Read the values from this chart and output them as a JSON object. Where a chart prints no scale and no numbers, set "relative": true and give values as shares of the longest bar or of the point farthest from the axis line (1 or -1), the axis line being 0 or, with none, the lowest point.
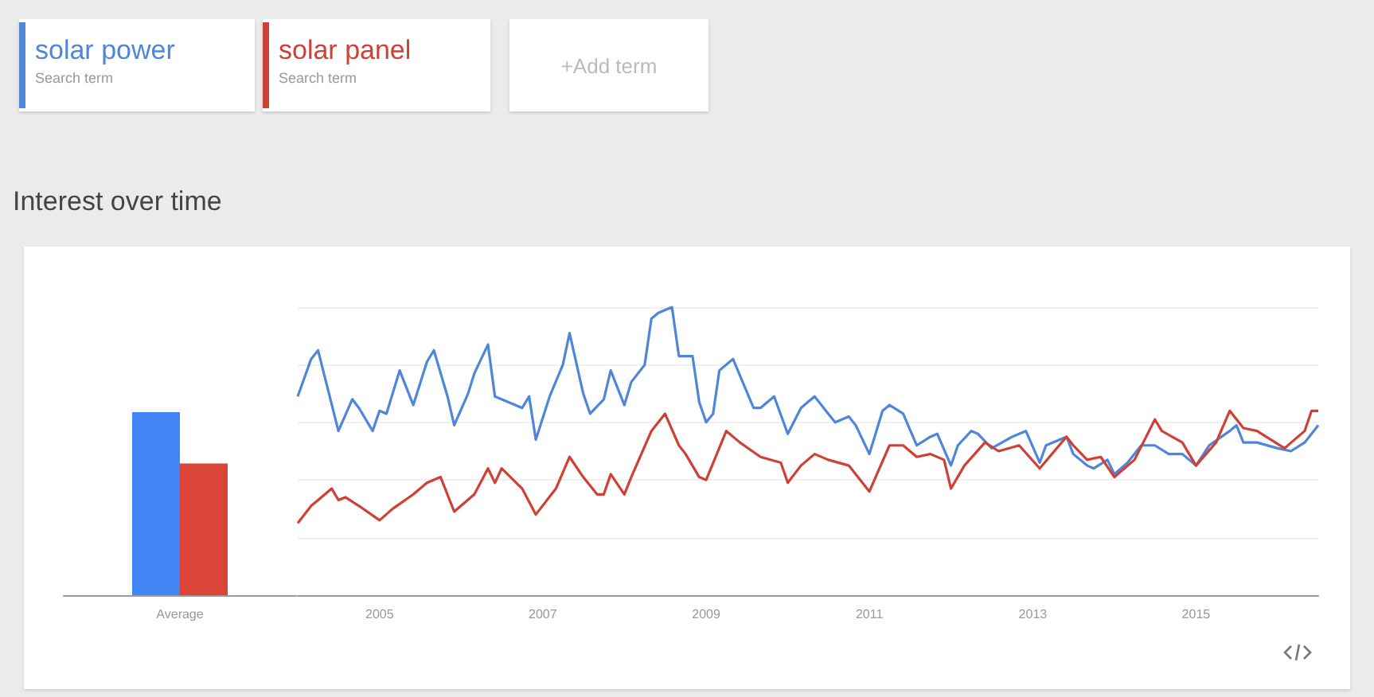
{
  "chart_data": [
    {
      "type": "bar",
      "categories": [
        "Average"
      ],
      "relative": true,
      "series": [
        {
          "color": "#4285f4",
          "values": [
            1
          ]
        },
        {
          "color": "#db4437",
          "values": [
            0.72
          ]
        }
      ]
    },
    {
      "type": "line",
      "title": "Interest over time",
      "relative": true,
      "grid": "y",
      "legend": "top left",
      "marker": "none",
      "line_style": "solid",
      "annotations": [
        "Search term",
        "Search term",
        "+Add term"
      ],
      "xlim": [
        "2004-01",
        "2016-07"
      ],
      "xticks": [
        "2005",
        "2007",
        "2009",
        "2011",
        "2013",
        "2015"
      ],
      "series": [
        {
          "name": "solar power",
          "color": "#4f86d9",
          "x": [
            "2004-01",
            "2004-03",
            "2004-04",
            "2004-07",
            "2004-09",
            "2004-10",
            "2004-12",
            "2005-01",
            "2005-02",
            "2005-04",
            "2005-06",
            "2005-08",
            "2005-09",
            "2005-11",
            "2005-12",
            "2006-02",
            "2006-03",
            "2006-05",
            "2006-06",
            "2006-08",
            "2006-10",
            "2006-11",
            "2006-12",
            "2007-02",
            "2007-04",
            "2007-05",
            "2007-07",
            "2007-08",
            "2007-10",
            "2007-11",
            "2008-01",
            "2008-02",
            "2008-04",
            "2008-05",
            "2008-06",
            "2008-08",
            "2008-09",
            "2008-11",
            "2008-12",
            "2009-01",
            "2009-02",
            "2009-03",
            "2009-05",
            "2009-08",
            "2009-09",
            "2009-11",
            "2010-01",
            "2010-03",
            "2010-05",
            "2010-07",
            "2010-08",
            "2010-10",
            "2010-11",
            "2011-01",
            "2011-03",
            "2011-04",
            "2011-06",
            "2011-08",
            "2011-10",
            "2011-11",
            "2012-01",
            "2012-02",
            "2012-04",
            "2012-05",
            "2012-07",
            "2012-10",
            "2012-11",
            "2012-12",
            "2013-02",
            "2013-03",
            "2013-06",
            "2013-07",
            "2013-09",
            "2013-10",
            "2013-12",
            "2014-01",
            "2014-03",
            "2014-05",
            "2014-07",
            "2014-09",
            "2014-11",
            "2015-01",
            "2015-03",
            "2015-06",
            "2015-07",
            "2015-08",
            "2015-10",
            "2016-01",
            "2016-03",
            "2016-05",
            "2016-07"
          ],
          "values": [
            0.69,
            0.82,
            0.85,
            0.57,
            0.68,
            0.65,
            0.57,
            0.64,
            0.63,
            0.78,
            0.66,
            0.81,
            0.85,
            0.69,
            0.59,
            0.7,
            0.77,
            0.87,
            0.69,
            0.67,
            0.65,
            0.69,
            0.54,
            0.69,
            0.8,
            0.91,
            0.7,
            0.63,
            0.68,
            0.78,
            0.66,
            0.74,
            0.8,
            0.96,
            0.98,
            1,
            0.83,
            0.83,
            0.67,
            0.6,
            0.63,
            0.78,
            0.82,
            0.65,
            0.65,
            0.69,
            0.56,
            0.65,
            0.69,
            0.63,
            0.6,
            0.62,
            0.59,
            0.49,
            0.64,
            0.66,
            0.63,
            0.52,
            0.55,
            0.56,
            0.45,
            0.52,
            0.57,
            0.56,
            0.51,
            0.55,
            0.56,
            0.57,
            0.46,
            0.52,
            0.55,
            0.49,
            0.45,
            0.44,
            0.47,
            0.42,
            0.46,
            0.52,
            0.52,
            0.49,
            0.49,
            0.45,
            0.52,
            0.57,
            0.59,
            0.53,
            0.53,
            0.51,
            0.5,
            0.53,
            0.59
          ]
        },
        {
          "name": "solar panel",
          "color": "#cf4136",
          "x": [
            "2004-01",
            "2004-03",
            "2004-04",
            "2004-06",
            "2004-07",
            "2004-08",
            "2004-10",
            "2005-01",
            "2005-03",
            "2005-06",
            "2005-08",
            "2005-10",
            "2005-12",
            "2006-03",
            "2006-05",
            "2006-06",
            "2006-07",
            "2006-10",
            "2006-12",
            "2007-03",
            "2007-05",
            "2007-07",
            "2007-09",
            "2007-10",
            "2007-11",
            "2008-01",
            "2008-02",
            "2008-05",
            "2008-07",
            "2008-09",
            "2008-10",
            "2008-12",
            "2009-01",
            "2009-04",
            "2009-06",
            "2009-09",
            "2009-12",
            "2010-01",
            "2010-03",
            "2010-05",
            "2010-07",
            "2010-10",
            "2011-01",
            "2011-04",
            "2011-06",
            "2011-08",
            "2011-10",
            "2011-12",
            "2012-01",
            "2012-03",
            "2012-06",
            "2012-08",
            "2012-11",
            "2013-02",
            "2013-06",
            "2013-07",
            "2013-09",
            "2013-11",
            "2014-01",
            "2014-04",
            "2014-07",
            "2014-08",
            "2014-11",
            "2015-01",
            "2015-04",
            "2015-06",
            "2015-08",
            "2015-10",
            "2016-02",
            "2016-05",
            "2016-06",
            "2016-07"
          ],
          "values": [
            0.25,
            0.31,
            0.33,
            0.37,
            0.33,
            0.34,
            0.31,
            0.26,
            0.3,
            0.35,
            0.39,
            0.41,
            0.29,
            0.35,
            0.44,
            0.39,
            0.44,
            0.37,
            0.28,
            0.37,
            0.48,
            0.41,
            0.35,
            0.35,
            0.42,
            0.35,
            0.41,
            0.57,
            0.63,
            0.52,
            0.49,
            0.41,
            0.4,
            0.57,
            0.53,
            0.48,
            0.46,
            0.39,
            0.45,
            0.49,
            0.47,
            0.45,
            0.36,
            0.52,
            0.52,
            0.48,
            0.49,
            0.47,
            0.37,
            0.45,
            0.53,
            0.5,
            0.52,
            0.44,
            0.55,
            0.52,
            0.47,
            0.48,
            0.41,
            0.47,
            0.61,
            0.57,
            0.53,
            0.45,
            0.53,
            0.64,
            0.58,
            0.57,
            0.51,
            0.57,
            0.64,
            0.64
          ]
        }
      ]
    }
  ]
}
